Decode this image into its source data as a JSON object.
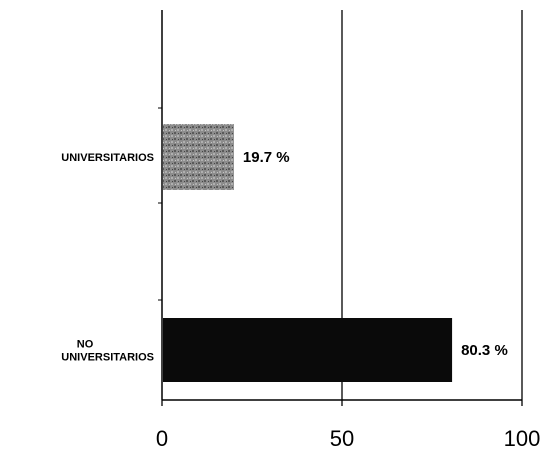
{
  "chart_data": {
    "type": "bar",
    "orientation": "horizontal",
    "categories": [
      [
        "UNIVERSITARIOS"
      ],
      [
        "NO",
        "UNIVERSITARIOS"
      ]
    ],
    "values": [
      19.7,
      80.3
    ],
    "value_labels": [
      "19.7 %",
      "80.3 %"
    ],
    "bar_colors": [
      "#8a8a8a",
      "#0a0a0a"
    ],
    "xlim": [
      0,
      100
    ],
    "xticks": [
      0,
      50,
      100
    ],
    "gridlines": [
      50,
      100
    ],
    "grid": true,
    "legend": "none",
    "title": "",
    "xlabel": "",
    "ylabel": ""
  }
}
